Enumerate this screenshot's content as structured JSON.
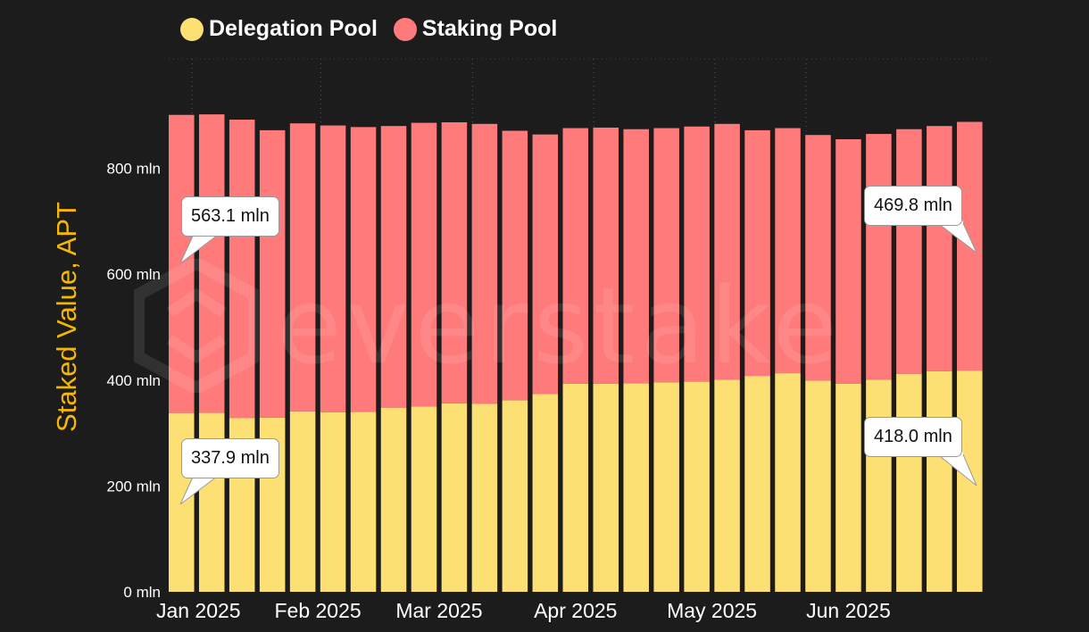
{
  "colors": {
    "background": "#1c1c1c",
    "delegation": "#fde074",
    "staking": "#ff7b7b",
    "ylabel": "#f5b800",
    "axis_text": "#ffffff"
  },
  "legend": {
    "delegation_label": "Delegation Pool",
    "staking_label": "Staking Pool"
  },
  "watermark": {
    "text": "everstake"
  },
  "callouts": {
    "first_staking": "563.1 mln",
    "first_delegation": "337.9 mln",
    "last_staking": "469.8 mln",
    "last_delegation": "418.0 mln"
  },
  "chart_data": {
    "type": "bar",
    "stacked": true,
    "ylabel": "Staked Value, APT",
    "ylim": [
      0,
      900
    ],
    "yticks": [
      {
        "value": 0,
        "label": "0 mln"
      },
      {
        "value": 200,
        "label": "200 mln"
      },
      {
        "value": 400,
        "label": "400 mln"
      },
      {
        "value": 600,
        "label": "600 mln"
      },
      {
        "value": 800,
        "label": "800 mln"
      }
    ],
    "xticks": [
      {
        "index": 0,
        "label": "Jan 2025"
      },
      {
        "index": 4.5,
        "label": "Feb 2025"
      },
      {
        "index": 8.5,
        "label": "Mar 2025"
      },
      {
        "index": 13,
        "label": "Apr 2025"
      },
      {
        "index": 17.5,
        "label": "May 2025"
      },
      {
        "index": 22,
        "label": "Jun 2025"
      }
    ],
    "grid": "vertical dotted lines at month boundaries",
    "legend_position": "top-left",
    "series": [
      {
        "name": "Delegation Pool",
        "color": "#fde074",
        "values": [
          337.9,
          338,
          328,
          329,
          341,
          339,
          340,
          348,
          350,
          356,
          355,
          362,
          374,
          393,
          393,
          394,
          396,
          397,
          401,
          408,
          413,
          399,
          393,
          401,
          412,
          417,
          418.0
        ]
      },
      {
        "name": "Staking Pool",
        "color": "#ff7b7b",
        "values": [
          563.1,
          564,
          564,
          543,
          544,
          542,
          538,
          532,
          536,
          531,
          529,
          509,
          490,
          483,
          484,
          480,
          480,
          482,
          483,
          464,
          463,
          464,
          462,
          464,
          462,
          463,
          469.8
        ]
      }
    ]
  }
}
